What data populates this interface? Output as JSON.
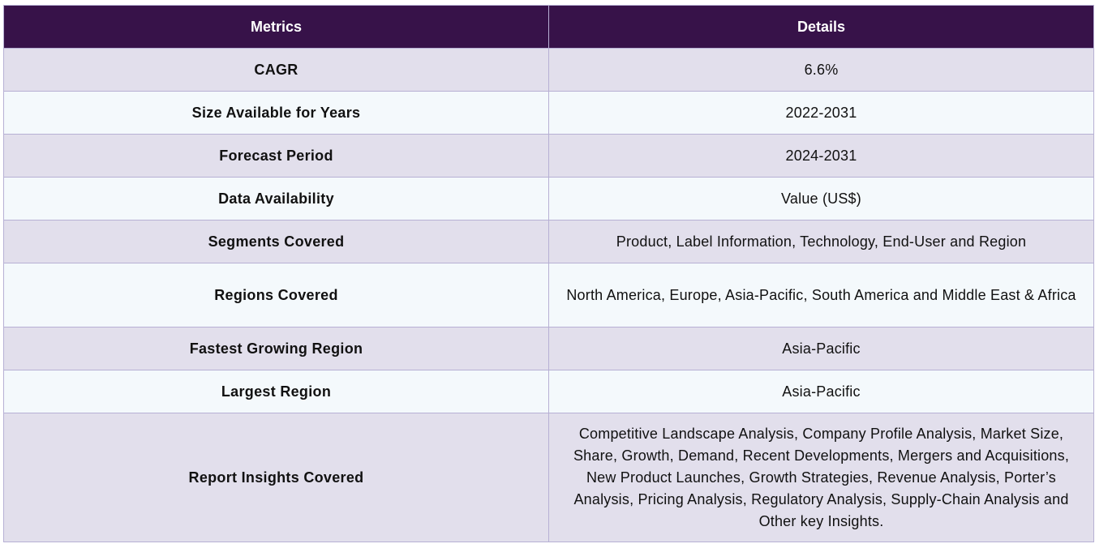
{
  "table": {
    "headers": {
      "metrics": "Metrics",
      "details": "Details"
    },
    "rows": [
      {
        "metric": "CAGR",
        "detail": "6.6%"
      },
      {
        "metric": "Size Available for Years",
        "detail": "2022-2031"
      },
      {
        "metric": "Forecast Period",
        "detail": "2024-2031"
      },
      {
        "metric": "Data Availability",
        "detail": "Value (US$)"
      },
      {
        "metric": "Segments Covered",
        "detail": "Product, Label Information, Technology, End-User and Region"
      },
      {
        "metric": "Regions Covered",
        "detail": "North America, Europe, Asia-Pacific, South America and Middle East & Africa"
      },
      {
        "metric": "Fastest Growing Region",
        "detail": "Asia-Pacific"
      },
      {
        "metric": "Largest Region",
        "detail": "Asia-Pacific"
      },
      {
        "metric": "Report Insights Covered",
        "detail": "Competitive Landscape Analysis, Company Profile Analysis, Market Size, Share, Growth, Demand, Recent Developments, Mergers and Acquisitions, New Product Launches, Growth Strategies, Revenue Analysis, Porter’s Analysis, Pricing Analysis, Regulatory Analysis, Supply-Chain Analysis and Other key Insights."
      }
    ]
  },
  "colors": {
    "header_bg": "#371249",
    "odd_row_bg": "#e2dfec",
    "even_row_bg": "#f4f9fc",
    "border": "#b7b0d4"
  }
}
